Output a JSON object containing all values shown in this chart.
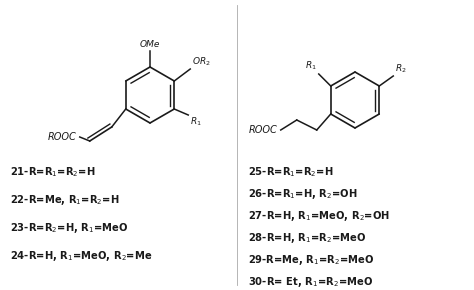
{
  "background_color": "#ffffff",
  "text_color": "#1a1a1a",
  "fig_width": 4.74,
  "fig_height": 2.9,
  "dpi": 100,
  "left_labels": [
    "21-R=R$_1$=R$_2$=H",
    "22-R=Me, R$_1$=R$_2$=H",
    "23-R=R$_2$=H, R$_1$=MeO",
    "24-R=H, R$_1$=MeO, R$_2$=Me"
  ],
  "right_labels": [
    "25-R=R$_1$=R$_2$=H",
    "26-R=R$_1$=H, R$_2$=OH",
    "27-R=H, R$_1$=MeO, R$_2$=OH",
    "28-R=H, R$_1$=R$_2$=MeO",
    "29-R=Me, R$_1$=R$_2$=MeO",
    "30-R= Et, R$_1$=R$_2$=MeO"
  ]
}
